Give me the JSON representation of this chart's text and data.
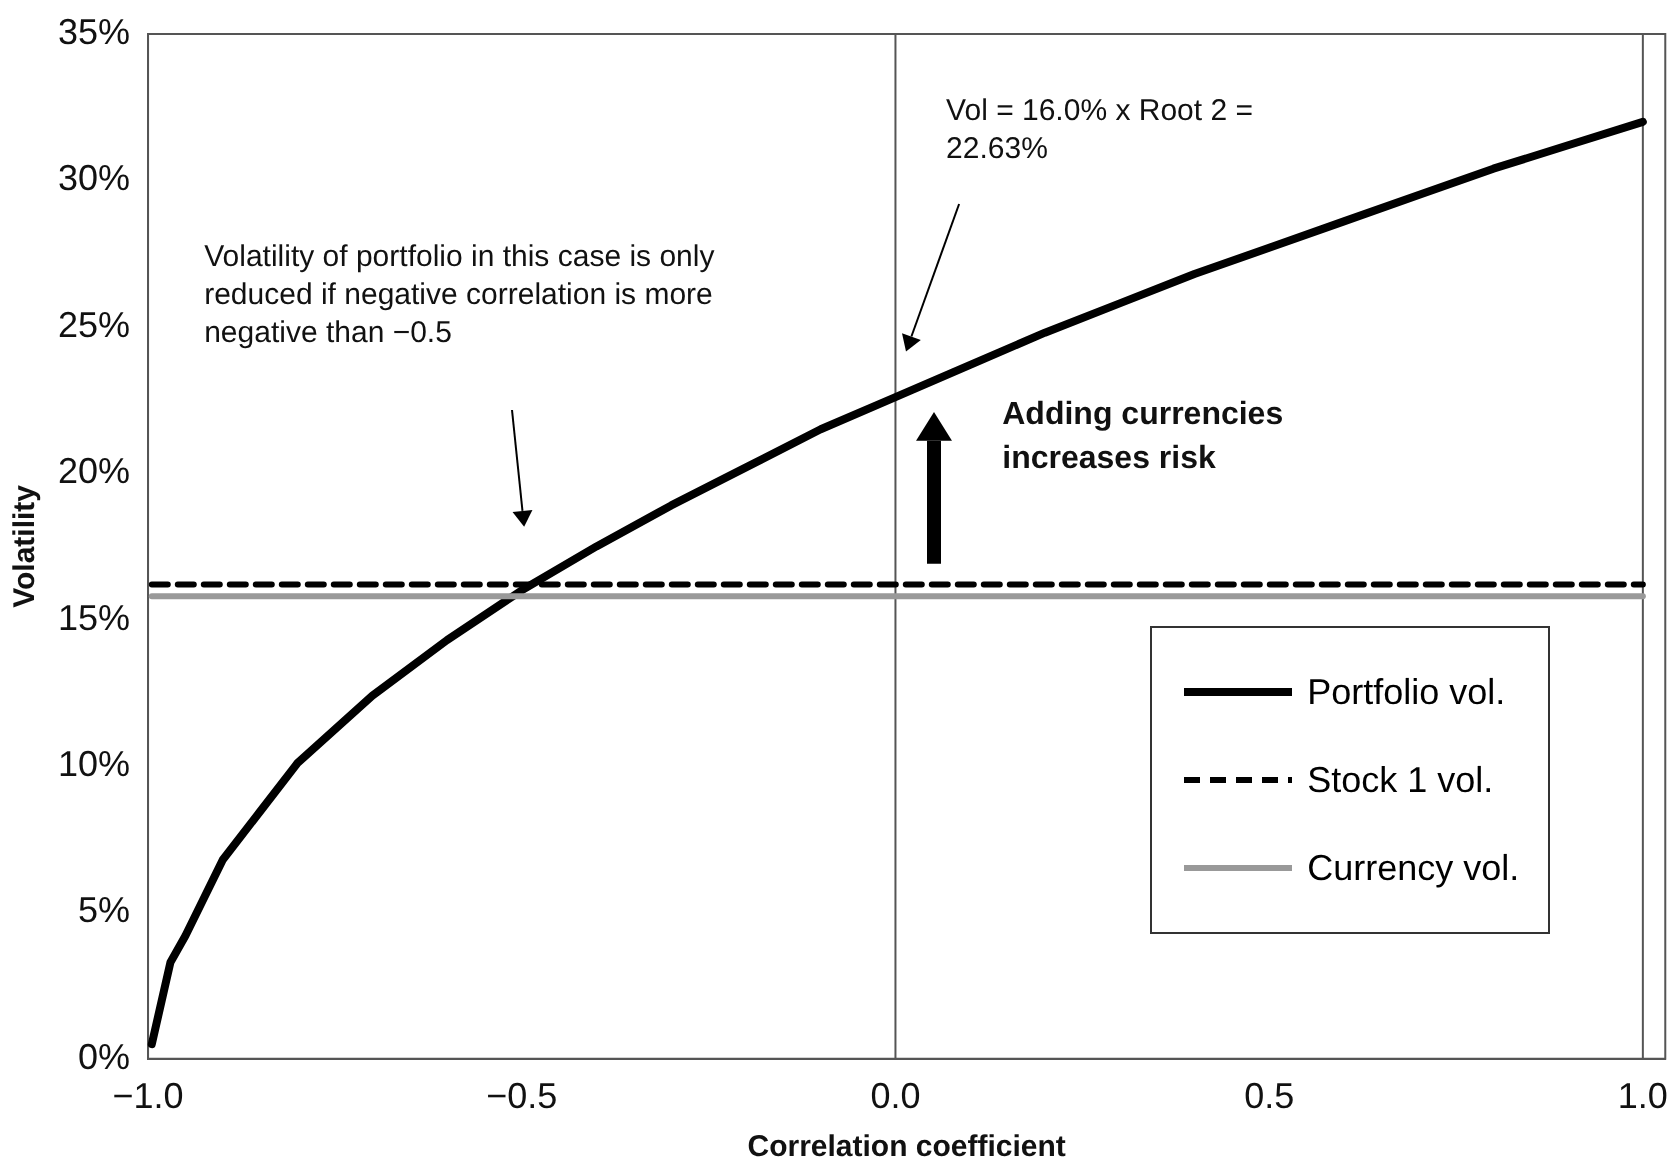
{
  "chart_data": {
    "type": "line",
    "xlabel": "Correlation coefficient",
    "ylabel": "Volatility",
    "x": [
      -0.995,
      -0.97,
      -0.95,
      -0.9,
      -0.8,
      -0.7,
      -0.6,
      -0.5,
      -0.4,
      -0.3,
      -0.2,
      -0.1,
      0,
      0.1,
      0.2,
      0.3,
      0.4,
      0.5,
      0.6,
      0.7,
      0.8,
      0.9,
      1.0
    ],
    "series": [
      {
        "name": "Portfolio vol.",
        "color": "#000000",
        "line_style": "solid",
        "values": [
          0.5,
          3.3,
          4.2,
          6.8,
          10.1,
          12.4,
          14.3,
          16.0,
          17.5,
          18.9,
          20.2,
          21.5,
          22.6,
          23.7,
          24.8,
          25.8,
          26.8,
          27.7,
          28.6,
          29.5,
          30.4,
          31.2,
          32.0
        ]
      },
      {
        "name": "Stock 1 vol.",
        "color": "#000000",
        "line_style": "dashed",
        "values": [
          16.2,
          16.2,
          16.2,
          16.2,
          16.2,
          16.2,
          16.2,
          16.2,
          16.2,
          16.2,
          16.2,
          16.2,
          16.2,
          16.2,
          16.2,
          16.2,
          16.2,
          16.2,
          16.2,
          16.2,
          16.2,
          16.2,
          16.2
        ]
      },
      {
        "name": "Currency vol.",
        "color": "#999999",
        "line_style": "solid",
        "values": [
          15.8,
          15.8,
          15.8,
          15.8,
          15.8,
          15.8,
          15.8,
          15.8,
          15.8,
          15.8,
          15.8,
          15.8,
          15.8,
          15.8,
          15.8,
          15.8,
          15.8,
          15.8,
          15.8,
          15.8,
          15.8,
          15.8,
          15.8
        ]
      }
    ],
    "xlim": [
      -1,
      1.03
    ],
    "xticks": [
      {
        "value": -1,
        "label": "−1.0"
      },
      {
        "value": -0.5,
        "label": "−0.5"
      },
      {
        "value": 0,
        "label": "0.0"
      },
      {
        "value": 0.5,
        "label": "0.5"
      },
      {
        "value": 1,
        "label": "1.0"
      }
    ],
    "ylim": [
      0,
      35
    ],
    "yticks": [
      {
        "value": 0,
        "label": "0%"
      },
      {
        "value": 5,
        "label": "5%"
      },
      {
        "value": 10,
        "label": "10%"
      },
      {
        "value": 15,
        "label": "15%"
      },
      {
        "value": 20,
        "label": "20%"
      },
      {
        "value": 25,
        "label": "25%"
      },
      {
        "value": 30,
        "label": "30%"
      },
      {
        "value": 35,
        "label": "35%"
      }
    ],
    "ref_lines": [
      {
        "axis": "x",
        "value": 0,
        "color": "#555555"
      },
      {
        "axis": "x",
        "value": 1,
        "color": "#555555"
      }
    ],
    "annotations": [
      "Volatility of portfolio in this case is only reduced if negative correlation is more negative than −0.5",
      "Vol  = 16.0% x Root 2 = 22.63%",
      "Adding currencies increases risk"
    ],
    "legend": "bottom right",
    "marker": "none"
  }
}
